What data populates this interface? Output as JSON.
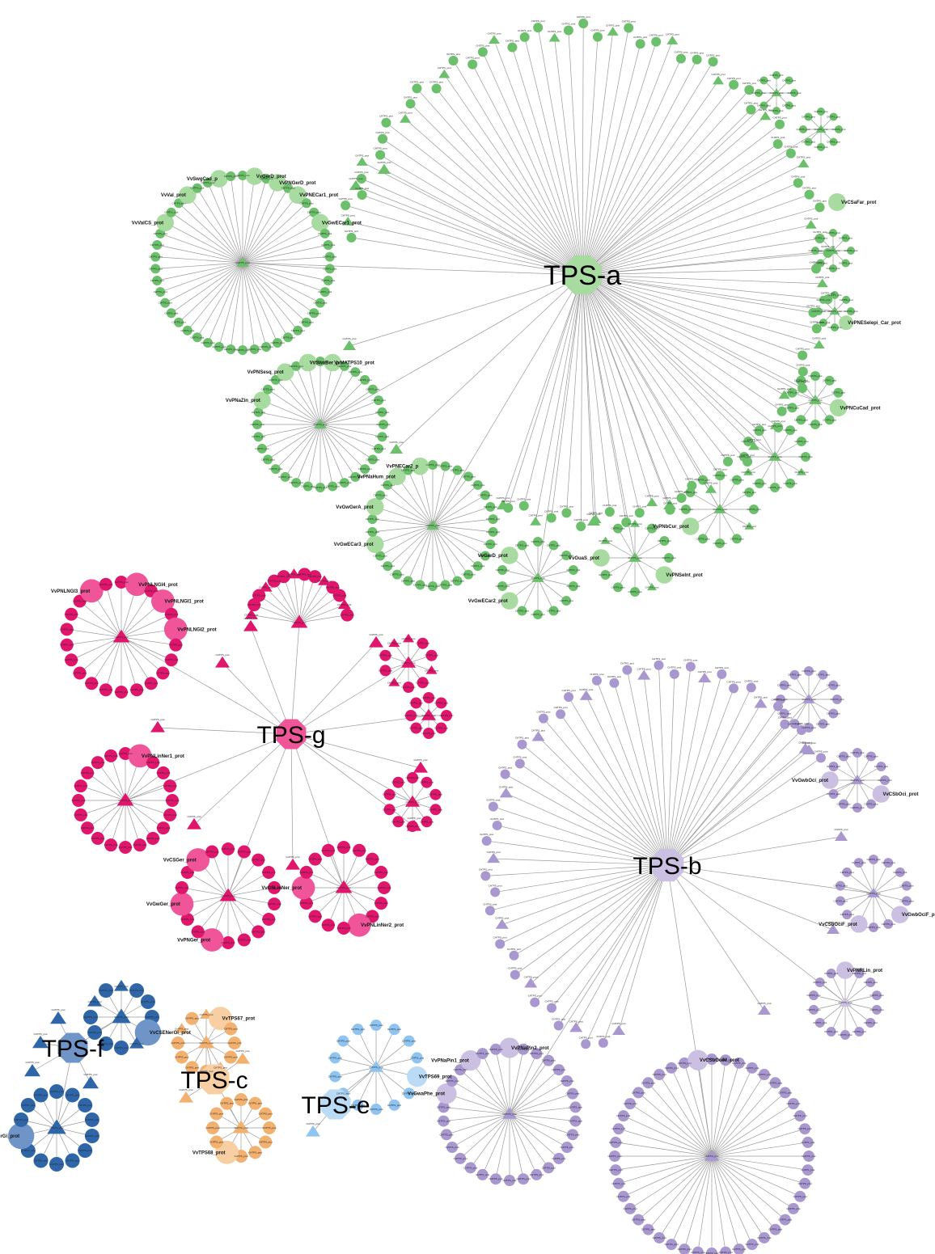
{
  "families": [
    {
      "id": "tps-a",
      "label": "TPS-a",
      "color": "#6cc06c",
      "light": "#a8dba0"
    },
    {
      "id": "tps-g",
      "label": "TPS-g",
      "color": "#e0166d",
      "light": "#f0559a"
    },
    {
      "id": "tps-b",
      "label": "TPS-b",
      "color": "#a998cf",
      "light": "#cbbfe2"
    },
    {
      "id": "tps-f",
      "label": "TPS-f",
      "color": "#2f66a8",
      "light": "#6f94c8"
    },
    {
      "id": "tps-c",
      "label": "TPS-c",
      "color": "#f3b16f",
      "light": "#f8cfa3"
    },
    {
      "id": "tps-e",
      "label": "TPS-e",
      "color": "#8ec4ef",
      "light": "#b9dbf6"
    }
  ],
  "named_nodes": {
    "tps-a": [
      "VvSwgCad_p",
      "VvGerD_prot",
      "VvPNGerD_prot",
      "VvVal_prot",
      "VvPNECar1_prot",
      "VvValCS_prot",
      "VvGwECar1_prot",
      "VvSwaBer_p",
      "VvMATPS10_prot",
      "VvPNSesq_prot",
      "VvPNaZin_prot",
      "VvPNECar2_p",
      "VvPNaHum_prot",
      "VvGwGerA_prot",
      "VvGwECar3_prot",
      "VvGerD_prot",
      "VvGwECar2_prot",
      "VvGuaS_prot",
      "VvPNSeInt_prot",
      "VvPNbCur_prot",
      "VvPNCuCad_prot",
      "VvPNESelepi_Car_prot",
      "VvCSaFar_prot"
    ],
    "tps-g": [
      "VvPNLNGI3_prot",
      "VvPNLNGI4_prot",
      "VvPNLNGI1_prot",
      "VvPNLNGI2_prot",
      "VvPNLinNer1_prot",
      "VvCSGer_prot",
      "VvGwGer_prot",
      "VvPNGer_prot",
      "VvCSLinNer_prot",
      "VvPNLinNer2_prot"
    ],
    "tps-b": [
      "VvGwbOci_prot",
      "VvCSbOci_prot",
      "VvCSbOciF_prot",
      "VvGwbOciF_prot",
      "VvPNRLin_prot",
      "VvCSbOciM_prot",
      "VvPNaPin2_prot",
      "VvPNaPin1_prot",
      "VvGwaPhe_prot"
    ],
    "tps-f": [
      "VvCSENerGi_prot",
      "VvPNENerGi_prot"
    ],
    "tps-c": [
      "VvTPS67_prot",
      "VvTPS68_prot"
    ],
    "tps-e": [
      "VvTPS69_prot"
    ]
  },
  "node_label": "CHTPS_prot"
}
